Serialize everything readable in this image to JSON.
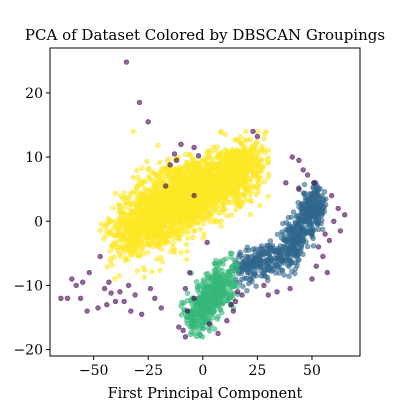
{
  "chart_data": {
    "type": "scatter",
    "title": "PCA of Dataset Colored by DBSCAN Groupings",
    "xlabel": "First Principal Component",
    "ylabel": "",
    "xlim": [
      -70,
      72
    ],
    "ylim": [
      -21,
      27
    ],
    "xticks": [
      -50,
      -25,
      0,
      25,
      50
    ],
    "yticks": [
      -20,
      -10,
      0,
      10,
      20
    ],
    "xtick_labels": [
      "−50",
      "−25",
      "0",
      "25",
      "50"
    ],
    "ytick_labels": [
      "−20",
      "−10",
      "0",
      "10",
      "20"
    ],
    "grid": false,
    "legend": "none",
    "marker_alpha": 0.6,
    "clusters": [
      {
        "group": "yellow",
        "color": "#fde725",
        "count": 2500,
        "segments": [
          {
            "from": [
              -35,
              -2
            ],
            "to": [
              -5,
              5
            ],
            "spread_x": 6,
            "spread_y": 2.6
          },
          {
            "from": [
              -10,
              3
            ],
            "to": [
              22,
              9
            ],
            "spread_x": 5,
            "spread_y": 2.3
          }
        ],
        "x_range": [
          -47,
          30
        ],
        "y_range": [
          -9,
          14
        ]
      },
      {
        "group": "blue",
        "color": "#31688e",
        "count": 650,
        "segments": [
          {
            "from": [
              17,
              -7.5
            ],
            "to": [
              34,
              -5
            ],
            "spread_x": 3.5,
            "spread_y": 1.2
          },
          {
            "from": [
              37,
              -6
            ],
            "to": [
              46,
              0
            ],
            "spread_x": 2.5,
            "spread_y": 1.6
          },
          {
            "from": [
              47,
              1
            ],
            "to": [
              54,
              3
            ],
            "spread_x": 2,
            "spread_y": 1.7
          }
        ],
        "x_range": [
          14,
          58
        ],
        "y_range": [
          -11,
          6
        ]
      },
      {
        "group": "green",
        "color": "#35b779",
        "count": 450,
        "segments": [
          {
            "from": [
              -5,
              -15
            ],
            "to": [
              12,
              -9
            ],
            "spread_x": 3,
            "spread_y": 1.8
          }
        ],
        "x_range": [
          -10,
          16
        ],
        "y_range": [
          -18,
          -5
        ]
      }
    ],
    "noise_points": {
      "group": "purple",
      "color": "#440154",
      "points": [
        [
          -35,
          24.8
        ],
        [
          -29,
          18.5
        ],
        [
          -25,
          15.5
        ],
        [
          -13,
          10.5
        ],
        [
          -12,
          9.5
        ],
        [
          -17,
          5.5
        ],
        [
          -15,
          8.8
        ],
        [
          -10,
          12
        ],
        [
          23,
          14
        ],
        [
          25,
          13.2
        ],
        [
          -2,
          10.2
        ],
        [
          -4,
          11.5
        ],
        [
          -47,
          -5.5
        ],
        [
          -55,
          -9.5
        ],
        [
          -58,
          -10
        ],
        [
          -60,
          -9
        ],
        [
          -62,
          -12
        ],
        [
          -56,
          -12
        ],
        [
          -52,
          -8
        ],
        [
          -48,
          -13.5
        ],
        [
          -45,
          -10.5
        ],
        [
          -44,
          -13
        ],
        [
          -42,
          -11.2
        ],
        [
          -40,
          -12.5
        ],
        [
          -38,
          -11
        ],
        [
          -36,
          -12.5
        ],
        [
          -34,
          -10
        ],
        [
          -33,
          -14
        ],
        [
          -31,
          -11.5
        ],
        [
          -28,
          -14.5
        ],
        [
          -24,
          -10.5
        ],
        [
          -22,
          -12
        ],
        [
          -19,
          -13.5
        ],
        [
          -65,
          -12
        ],
        [
          -53,
          -14
        ],
        [
          -43,
          -9.5
        ],
        [
          -8,
          -10.5
        ],
        [
          -6,
          -8
        ],
        [
          -4,
          -12
        ],
        [
          -7,
          -14
        ],
        [
          -9,
          -17
        ],
        [
          -11,
          -16.5
        ],
        [
          14,
          -14
        ],
        [
          15,
          -12.5
        ],
        [
          16,
          -11
        ],
        [
          13,
          -13
        ],
        [
          11,
          -15.5
        ],
        [
          18,
          -11.5
        ],
        [
          3,
          -16
        ],
        [
          7,
          -17.5
        ],
        [
          -8,
          -18
        ],
        [
          41,
          10
        ],
        [
          44,
          9.5
        ],
        [
          46,
          8
        ],
        [
          48,
          7.2
        ],
        [
          51,
          6
        ],
        [
          56,
          -2
        ],
        [
          59,
          4
        ],
        [
          62,
          2
        ],
        [
          65,
          1
        ],
        [
          60,
          0
        ],
        [
          63,
          -1.5
        ],
        [
          58,
          -3
        ],
        [
          55,
          -5.5
        ],
        [
          52,
          -7
        ],
        [
          57,
          -8
        ],
        [
          53,
          -4
        ],
        [
          50,
          -9
        ],
        [
          34,
          -11
        ],
        [
          30,
          -11.5
        ],
        [
          40,
          -10.5
        ],
        [
          44,
          5
        ],
        [
          38,
          6
        ],
        [
          2,
          -3.3
        ],
        [
          -4,
          4
        ],
        [
          28,
          -10
        ]
      ]
    },
    "random_seed": 7
  }
}
